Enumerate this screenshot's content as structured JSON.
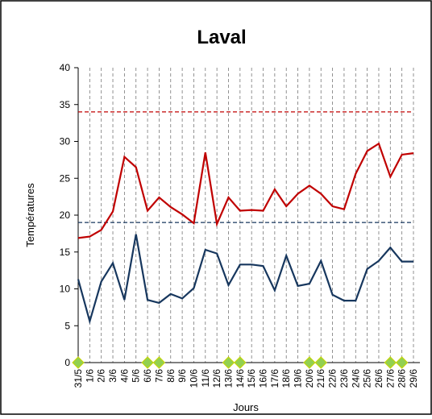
{
  "chart_data": {
    "type": "line",
    "title": "Laval",
    "x_label": "Jours",
    "y_label": "Températures",
    "categories": [
      "31/5",
      "1/6",
      "2/6",
      "3/6",
      "4/6",
      "5/6",
      "6/6",
      "7/6",
      "8/6",
      "9/6",
      "10/6",
      "11/6",
      "12/6",
      "13/6",
      "14/6",
      "15/6",
      "16/6",
      "17/6",
      "18/6",
      "19/6",
      "20/6",
      "21/6",
      "22/6",
      "23/6",
      "24/6",
      "25/6",
      "26/6",
      "27/6",
      "28/6",
      "29/6"
    ],
    "series": [
      {
        "color": "#c00000",
        "style": "line",
        "values": [
          16.9,
          17.1,
          18,
          20.5,
          27.9,
          26.5,
          20.6,
          22.4,
          21.1,
          20.1,
          18.9,
          28.5,
          18.8,
          22.4,
          20.6,
          20.7,
          20.6,
          23.5,
          21.2,
          22.9,
          24,
          22.9,
          21.2,
          20.8,
          25.6,
          28.7,
          29.7,
          25.2,
          28.2,
          28.4
        ]
      },
      {
        "color": "#17375e",
        "style": "line",
        "values": [
          11.3,
          5.6,
          11,
          13.5,
          8.5,
          17.4,
          8.5,
          8.1,
          9.3,
          8.7,
          10.1,
          15.3,
          14.8,
          10.5,
          13.3,
          13.3,
          13.1,
          9.8,
          14.5,
          10.4,
          10.7,
          13.8,
          9.2,
          8.4,
          8.4,
          12.7,
          13.8,
          15.6,
          13.7,
          13.7
        ]
      },
      {
        "color": "#92d050",
        "style": "diamond",
        "values": [
          0,
          null,
          null,
          null,
          null,
          null,
          0,
          0,
          null,
          null,
          null,
          null,
          null,
          0,
          0,
          null,
          null,
          null,
          null,
          null,
          0,
          0,
          null,
          null,
          null,
          null,
          null,
          0,
          0,
          null
        ]
      }
    ],
    "reference_lines": [
      {
        "value": 34,
        "color": "#c00000"
      },
      {
        "value": 19,
        "color": "#17375e"
      }
    ],
    "ylim": [
      0,
      40
    ],
    "yticks": [
      0,
      5,
      10,
      15,
      20,
      25,
      30,
      35,
      40
    ],
    "grid": "vertical-dashed"
  }
}
